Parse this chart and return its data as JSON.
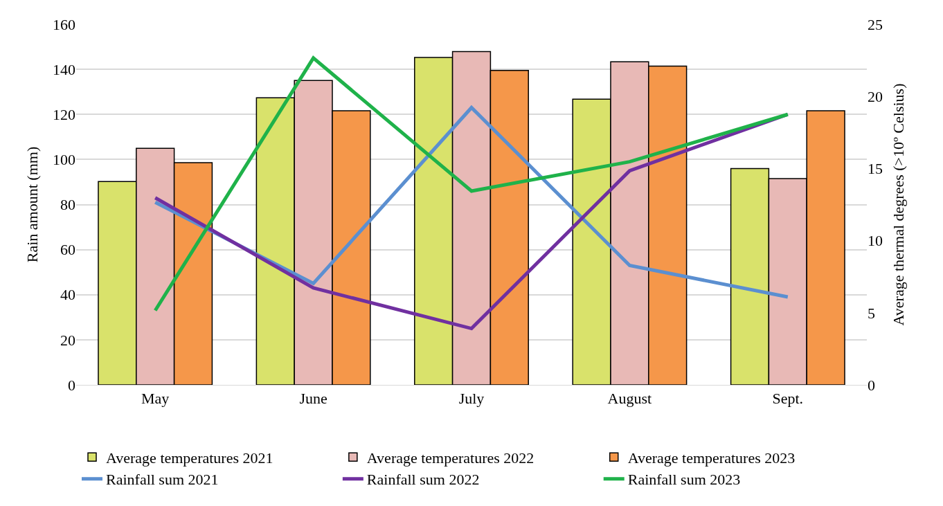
{
  "chart_data": {
    "type": "bar",
    "categories": [
      "May",
      "June",
      "July",
      "August",
      "Sept."
    ],
    "ylabel": "Rain amount (mm)",
    "y2label": "Average thermal degrees (>10º Celsius)",
    "ylim": [
      0,
      160
    ],
    "yticks": [
      0,
      20,
      40,
      60,
      80,
      100,
      120,
      140,
      160
    ],
    "y2lim": [
      0,
      25
    ],
    "y2ticks": [
      0,
      5,
      10,
      15,
      20,
      25
    ],
    "grid": "y",
    "legend": "bottom",
    "series": [
      {
        "name": "Average temperatures 2021",
        "axis": "y2",
        "color": "#d9e26b",
        "values": [
          14.1,
          19.9,
          22.7,
          19.8,
          15.0
        ]
      },
      {
        "name": "Average temperatures 2022",
        "axis": "y2",
        "color": "#e8b9b6",
        "values": [
          16.4,
          21.1,
          23.1,
          22.4,
          14.3
        ]
      },
      {
        "name": "Average temperatures 2023",
        "axis": "y2",
        "color": "#f5974a",
        "values": [
          15.4,
          19.0,
          21.8,
          22.1,
          19.0
        ]
      },
      {
        "name": "Rainfall sum 2021",
        "type": "line",
        "color": "#5b8fd0",
        "values": [
          81,
          45,
          123,
          53,
          39
        ]
      },
      {
        "name": "Rainfall sum 2022",
        "type": "line",
        "color": "#7030a0",
        "values": [
          83,
          43,
          25,
          95,
          120
        ]
      },
      {
        "name": "Rainfall sum 2023",
        "type": "line",
        "color": "#1fb24a",
        "values": [
          33,
          145,
          86,
          99,
          120
        ]
      }
    ]
  }
}
